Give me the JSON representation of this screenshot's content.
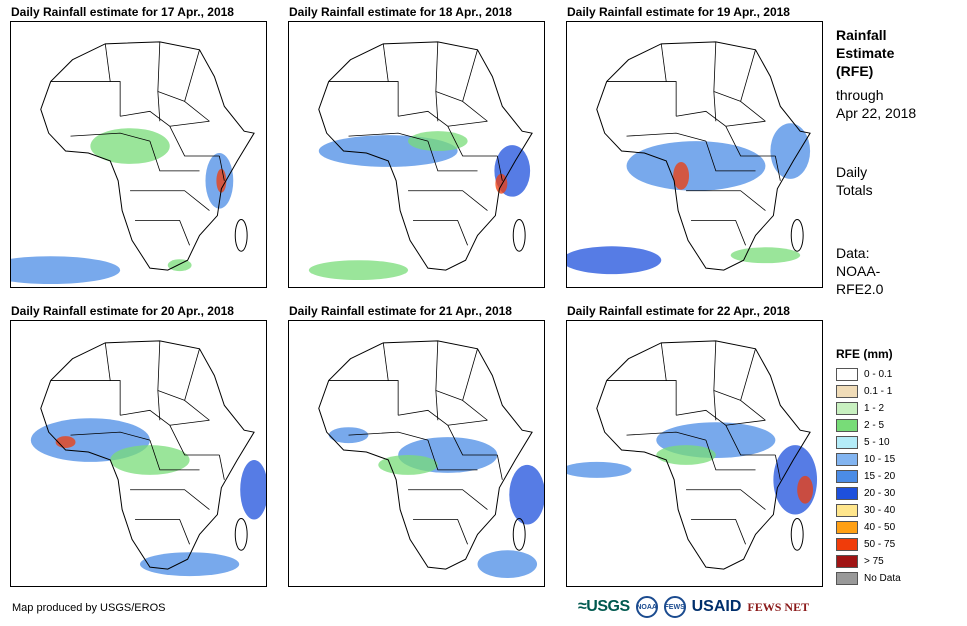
{
  "panels": [
    {
      "title": "Daily Rainfall estimate for 17 Apr., 2018"
    },
    {
      "title": "Daily Rainfall estimate for 18 Apr., 2018"
    },
    {
      "title": "Daily Rainfall estimate for 19 Apr., 2018"
    },
    {
      "title": "Daily Rainfall estimate for 20 Apr., 2018"
    },
    {
      "title": "Daily Rainfall estimate for 21 Apr., 2018"
    },
    {
      "title": "Daily Rainfall estimate for 22 Apr., 2018"
    }
  ],
  "side": {
    "title_line1": "Rainfall",
    "title_line2": "Estimate",
    "title_line3": "(RFE)",
    "through": "through",
    "date": "Apr 22, 2018",
    "daily1": "Daily",
    "daily2": "Totals",
    "data1": "Data:",
    "data2": "NOAA-",
    "data3": "RFE2.0"
  },
  "legend": {
    "title": "RFE (mm)",
    "items": [
      {
        "label": "0 - 0.1",
        "color": "#ffffff"
      },
      {
        "label": "0.1 - 1",
        "color": "#f0dcb8"
      },
      {
        "label": "1 - 2",
        "color": "#c8f0c0"
      },
      {
        "label": "2 - 5",
        "color": "#78dc78"
      },
      {
        "label": "5 - 10",
        "color": "#b4ecf8"
      },
      {
        "label": "10 - 15",
        "color": "#82b4f0"
      },
      {
        "label": "15 - 20",
        "color": "#4b8ce6"
      },
      {
        "label": "20 - 30",
        "color": "#1e50dc"
      },
      {
        "label": "30 - 40",
        "color": "#ffe68c"
      },
      {
        "label": "40 - 50",
        "color": "#ffa014"
      },
      {
        "label": "50 - 75",
        "color": "#f03c0a"
      },
      {
        "label": "> 75",
        "color": "#a01414"
      },
      {
        "label": "No Data",
        "color": "#999999"
      }
    ]
  },
  "footer": {
    "credit": "Map produced by USGS/EROS",
    "logo_usgs": "≈USGS",
    "logo_noaa": "NOAA",
    "logo_dhs": "FEWS",
    "logo_usaid": "USAID",
    "logo_fews": "FEWS NET"
  }
}
